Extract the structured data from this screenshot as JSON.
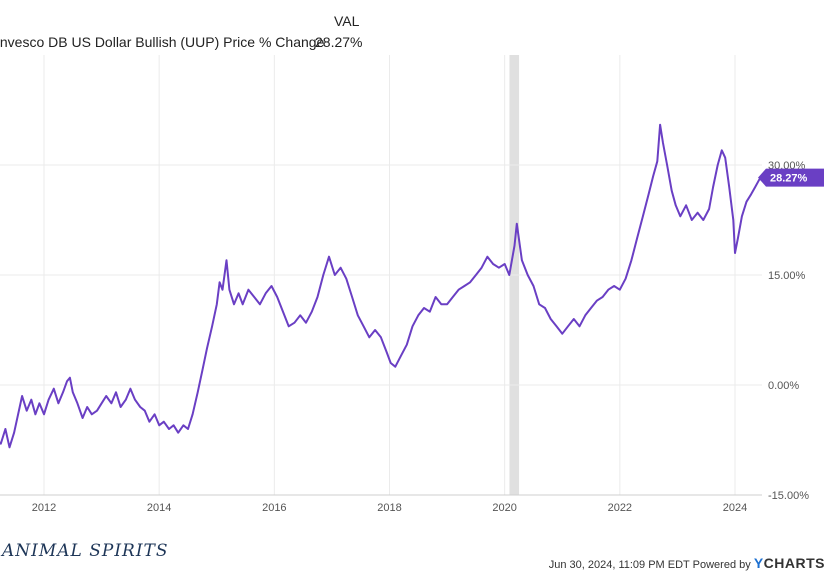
{
  "legend": {
    "header": "VAL",
    "series_name": "Invesco DB US Dollar Bullish (UUP) Price % Change",
    "series_value": "28.27%"
  },
  "colors": {
    "line": "#6a3fc4",
    "recession": "#e0e0e0",
    "grid": "#ebebeb",
    "badge": "#6a3fc4"
  },
  "footer": {
    "brand": "ANIMAL SPIRITS",
    "timestamp": "Jun 30, 2024, 11:09 PM EDT",
    "powered_by": "Powered by",
    "ycharts_y": "Y",
    "ycharts_rest": "CHARTS"
  },
  "chart_data": {
    "type": "line",
    "title": "",
    "xlabel": "",
    "ylabel": "",
    "x_ticks": [
      "2012",
      "2014",
      "2016",
      "2018",
      "2020",
      "2022",
      "2024"
    ],
    "y_ticks": [
      "30.00%",
      "15.00%",
      "0.00%",
      "-15.00%"
    ],
    "ylim": [
      -15,
      45
    ],
    "xlim": [
      2010.88,
      2024.5
    ],
    "grid": true,
    "last_value_label": "28.27%",
    "recession_band": [
      "2020-02",
      "2020-04"
    ],
    "series": [
      {
        "values": [
          [
            2010.88,
            -2.5
          ],
          [
            2010.95,
            -4.5
          ],
          [
            2011.02,
            -7.0
          ],
          [
            2011.1,
            -5.0
          ],
          [
            2011.18,
            -7.5
          ],
          [
            2011.25,
            -8.0
          ],
          [
            2011.33,
            -6.0
          ],
          [
            2011.4,
            -8.5
          ],
          [
            2011.48,
            -6.5
          ],
          [
            2011.55,
            -4.0
          ],
          [
            2011.62,
            -1.5
          ],
          [
            2011.7,
            -3.5
          ],
          [
            2011.78,
            -2.0
          ],
          [
            2011.85,
            -4.0
          ],
          [
            2011.92,
            -2.5
          ],
          [
            2012.0,
            -4.0
          ],
          [
            2012.08,
            -2.0
          ],
          [
            2012.17,
            -0.5
          ],
          [
            2012.25,
            -2.5
          ],
          [
            2012.33,
            -1.0
          ],
          [
            2012.4,
            0.5
          ],
          [
            2012.45,
            1.0
          ],
          [
            2012.5,
            -1.0
          ],
          [
            2012.58,
            -2.5
          ],
          [
            2012.67,
            -4.5
          ],
          [
            2012.75,
            -3.0
          ],
          [
            2012.83,
            -4.0
          ],
          [
            2012.92,
            -3.5
          ],
          [
            2013.0,
            -2.5
          ],
          [
            2013.08,
            -1.5
          ],
          [
            2013.17,
            -2.5
          ],
          [
            2013.25,
            -1.0
          ],
          [
            2013.33,
            -3.0
          ],
          [
            2013.42,
            -2.0
          ],
          [
            2013.5,
            -0.5
          ],
          [
            2013.58,
            -2.0
          ],
          [
            2013.67,
            -3.0
          ],
          [
            2013.75,
            -3.5
          ],
          [
            2013.83,
            -5.0
          ],
          [
            2013.92,
            -4.0
          ],
          [
            2014.0,
            -5.5
          ],
          [
            2014.08,
            -5.0
          ],
          [
            2014.17,
            -6.0
          ],
          [
            2014.25,
            -5.5
          ],
          [
            2014.33,
            -6.5
          ],
          [
            2014.42,
            -5.5
          ],
          [
            2014.5,
            -6.0
          ],
          [
            2014.58,
            -4.0
          ],
          [
            2014.67,
            -1.0
          ],
          [
            2014.75,
            2.0
          ],
          [
            2014.83,
            5.0
          ],
          [
            2014.92,
            8.0
          ],
          [
            2015.0,
            11.0
          ],
          [
            2015.05,
            14.0
          ],
          [
            2015.1,
            13.0
          ],
          [
            2015.17,
            17.0
          ],
          [
            2015.22,
            13.0
          ],
          [
            2015.3,
            11.0
          ],
          [
            2015.38,
            12.5
          ],
          [
            2015.45,
            11.0
          ],
          [
            2015.55,
            13.0
          ],
          [
            2015.65,
            12.0
          ],
          [
            2015.75,
            11.0
          ],
          [
            2015.85,
            12.5
          ],
          [
            2015.95,
            13.5
          ],
          [
            2016.05,
            12.0
          ],
          [
            2016.15,
            10.0
          ],
          [
            2016.25,
            8.0
          ],
          [
            2016.35,
            8.5
          ],
          [
            2016.45,
            9.5
          ],
          [
            2016.55,
            8.5
          ],
          [
            2016.65,
            10.0
          ],
          [
            2016.75,
            12.0
          ],
          [
            2016.85,
            15.0
          ],
          [
            2016.95,
            17.5
          ],
          [
            2017.05,
            15.0
          ],
          [
            2017.15,
            16.0
          ],
          [
            2017.25,
            14.5
          ],
          [
            2017.35,
            12.0
          ],
          [
            2017.45,
            9.5
          ],
          [
            2017.55,
            8.0
          ],
          [
            2017.65,
            6.5
          ],
          [
            2017.75,
            7.5
          ],
          [
            2017.85,
            6.5
          ],
          [
            2017.95,
            4.5
          ],
          [
            2018.02,
            3.0
          ],
          [
            2018.1,
            2.5
          ],
          [
            2018.2,
            4.0
          ],
          [
            2018.3,
            5.5
          ],
          [
            2018.4,
            8.0
          ],
          [
            2018.5,
            9.5
          ],
          [
            2018.6,
            10.5
          ],
          [
            2018.7,
            10.0
          ],
          [
            2018.8,
            12.0
          ],
          [
            2018.9,
            11.0
          ],
          [
            2019.0,
            11.0
          ],
          [
            2019.1,
            12.0
          ],
          [
            2019.2,
            13.0
          ],
          [
            2019.3,
            13.5
          ],
          [
            2019.4,
            14.0
          ],
          [
            2019.5,
            15.0
          ],
          [
            2019.6,
            16.0
          ],
          [
            2019.7,
            17.5
          ],
          [
            2019.8,
            16.5
          ],
          [
            2019.9,
            16.0
          ],
          [
            2020.0,
            16.5
          ],
          [
            2020.08,
            15.0
          ],
          [
            2020.17,
            19.0
          ],
          [
            2020.21,
            22.0
          ],
          [
            2020.3,
            17.0
          ],
          [
            2020.4,
            15.0
          ],
          [
            2020.5,
            13.5
          ],
          [
            2020.6,
            11.0
          ],
          [
            2020.7,
            10.5
          ],
          [
            2020.8,
            9.0
          ],
          [
            2020.9,
            8.0
          ],
          [
            2021.0,
            7.0
          ],
          [
            2021.1,
            8.0
          ],
          [
            2021.2,
            9.0
          ],
          [
            2021.3,
            8.0
          ],
          [
            2021.4,
            9.5
          ],
          [
            2021.5,
            10.5
          ],
          [
            2021.6,
            11.5
          ],
          [
            2021.7,
            12.0
          ],
          [
            2021.8,
            13.0
          ],
          [
            2021.9,
            13.5
          ],
          [
            2022.0,
            13.0
          ],
          [
            2022.1,
            14.5
          ],
          [
            2022.2,
            17.0
          ],
          [
            2022.3,
            20.0
          ],
          [
            2022.4,
            23.0
          ],
          [
            2022.5,
            26.0
          ],
          [
            2022.58,
            28.5
          ],
          [
            2022.65,
            30.5
          ],
          [
            2022.7,
            35.5
          ],
          [
            2022.75,
            33.0
          ],
          [
            2022.82,
            30.0
          ],
          [
            2022.9,
            26.5
          ],
          [
            2022.97,
            24.5
          ],
          [
            2023.05,
            23.0
          ],
          [
            2023.15,
            24.5
          ],
          [
            2023.25,
            22.5
          ],
          [
            2023.35,
            23.5
          ],
          [
            2023.45,
            22.5
          ],
          [
            2023.55,
            24.0
          ],
          [
            2023.62,
            27.0
          ],
          [
            2023.7,
            30.0
          ],
          [
            2023.77,
            32.0
          ],
          [
            2023.83,
            31.0
          ],
          [
            2023.9,
            27.0
          ],
          [
            2023.97,
            22.5
          ],
          [
            2024.0,
            18.0
          ],
          [
            2024.05,
            20.0
          ],
          [
            2024.12,
            23.0
          ],
          [
            2024.2,
            25.0
          ],
          [
            2024.28,
            26.0
          ],
          [
            2024.35,
            27.0
          ],
          [
            2024.42,
            28.0
          ],
          [
            2024.5,
            28.27
          ]
        ]
      }
    ]
  }
}
